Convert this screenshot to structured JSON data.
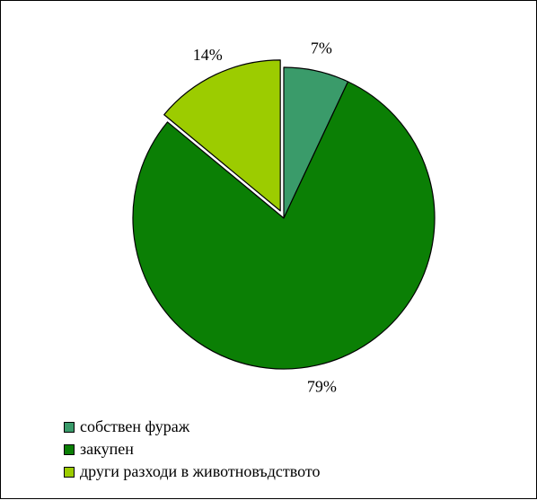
{
  "chart_data": {
    "type": "pie",
    "title": "",
    "categories": [
      "собствен фураж",
      "закупен",
      "други разходи в животновъдството"
    ],
    "values": [
      7,
      79,
      14
    ],
    "value_labels": [
      "7%",
      "79%",
      "14%"
    ],
    "colors": [
      "#3a9b6a",
      "#0b7f05",
      "#9ccc00"
    ],
    "exploded": [
      false,
      false,
      true
    ],
    "start_angle_deg": 0,
    "direction": "clockwise",
    "legend_placement": "bottom-left"
  }
}
